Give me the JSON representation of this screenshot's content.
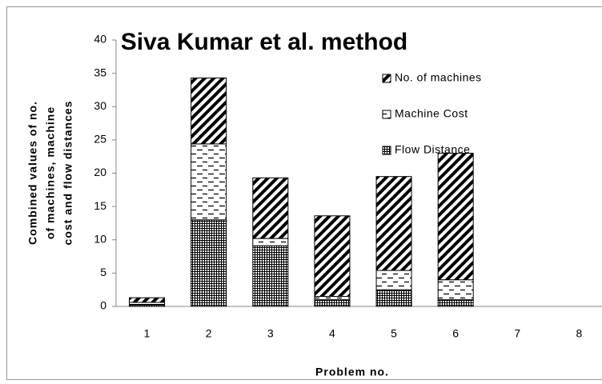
{
  "chart_data": {
    "type": "bar",
    "stacked": true,
    "title": "Siva Kumar et al. method",
    "xlabel": "Problem no.",
    "ylabel": [
      "Combined values of no.",
      "of machines, machine",
      "cost and flow distances"
    ],
    "categories": [
      "1",
      "2",
      "3",
      "4",
      "5",
      "6",
      "7",
      "8"
    ],
    "series": [
      {
        "name": "Flow Distance",
        "color": "#000000",
        "values": [
          0.3,
          13.0,
          9.1,
          1.0,
          2.5,
          1.0,
          null,
          null
        ]
      },
      {
        "name": "Machine Cost",
        "color": "#000000",
        "values": [
          0.3,
          11.4,
          1.1,
          0.5,
          2.9,
          3.0,
          null,
          null
        ]
      },
      {
        "name": "No. of machines",
        "color": "#000000",
        "values": [
          0.7,
          9.9,
          9.1,
          12.1,
          14.1,
          19.0,
          null,
          null
        ]
      }
    ],
    "ylim": [
      0,
      40
    ],
    "yticks": [
      0,
      5,
      10,
      15,
      20,
      25,
      30,
      35,
      40
    ],
    "grid": false
  }
}
